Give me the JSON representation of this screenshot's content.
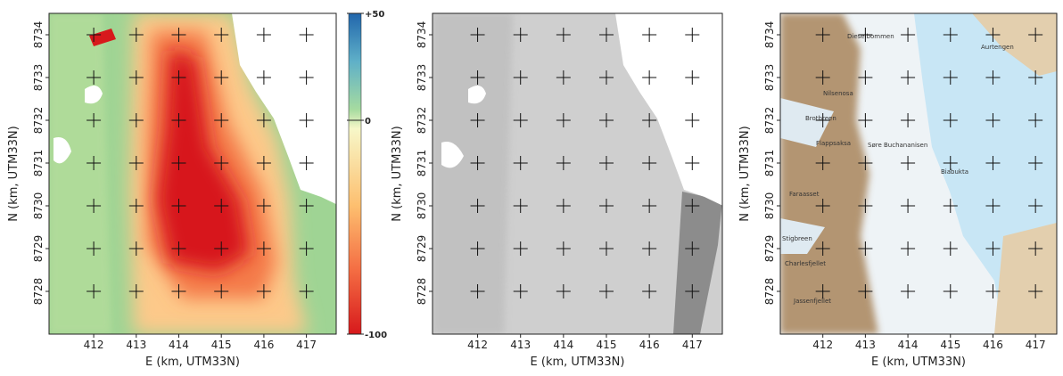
{
  "chart_data": [
    {
      "type": "heatmap",
      "xlabel": "E (km, UTM33N)",
      "ylabel": "N (km, UTM33N)",
      "xlim": [
        410.95,
        417.7
      ],
      "ylim": [
        8727,
        8734.5
      ],
      "xticks": [
        412,
        413,
        414,
        415,
        416,
        417
      ],
      "yticks": [
        8728,
        8729,
        8730,
        8731,
        8732,
        8733,
        8734
      ],
      "colorbar": {
        "lim": [
          -100,
          50
        ],
        "ticks": [
          {
            "value": 50,
            "label": "+50"
          },
          0,
          -100
        ]
      }
    },
    {
      "type": "image",
      "xlabel": "E (km, UTM33N)",
      "ylabel": "N (km, UTM33N)",
      "xlim": [
        410.95,
        417.7
      ],
      "ylim": [
        8727,
        8734.5
      ],
      "xticks": [
        412,
        413,
        414,
        415,
        416,
        417
      ],
      "yticks": [
        8728,
        8729,
        8730,
        8731,
        8732,
        8733,
        8734
      ]
    },
    {
      "type": "map",
      "xlabel": "E (km, UTM33N)",
      "ylabel": "N (km, UTM33N)",
      "xlim": [
        411,
        417.5
      ],
      "ylim": [
        8727,
        8734.5
      ],
      "xticks": [
        412,
        413,
        414,
        415,
        416,
        417
      ],
      "yticks": [
        8728,
        8729,
        8730,
        8731,
        8732,
        8733,
        8734
      ],
      "labels": [
        "Dieselbommen",
        "Aurtengen",
        "Nilsenosa",
        "Brotbreen",
        "Søre Buchananisen",
        "Flappsaksa",
        "Biabukta",
        "Faraasset",
        "Stigbreen",
        "Charlesfjellet",
        "Jassenfjellet"
      ]
    }
  ]
}
